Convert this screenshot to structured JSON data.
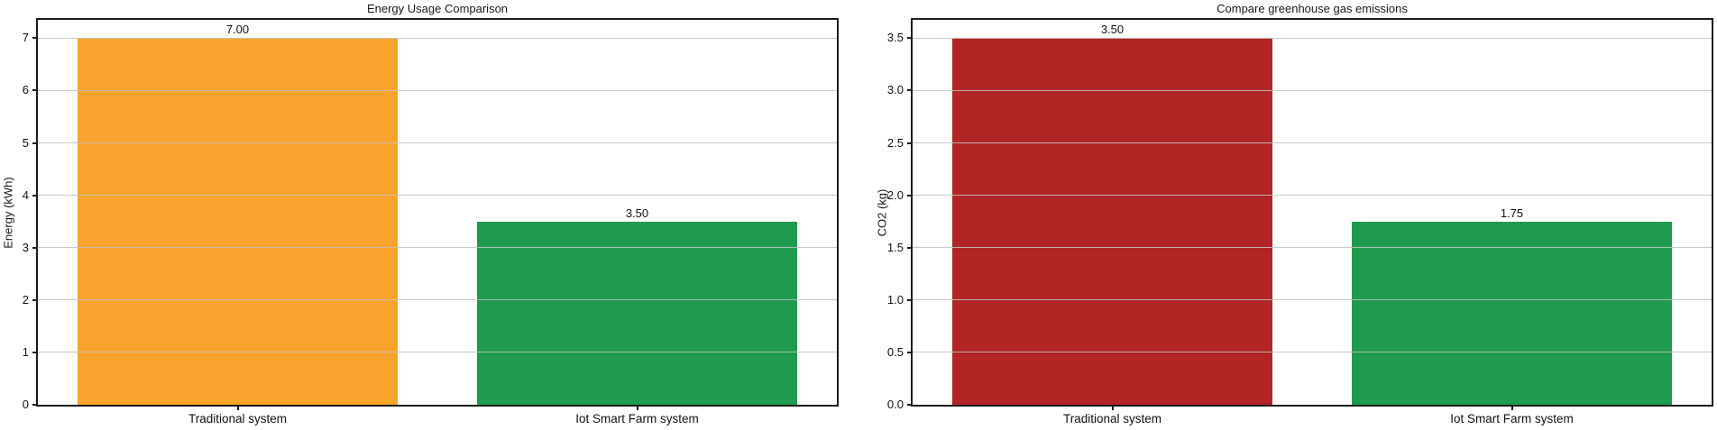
{
  "figure": {
    "background": "#ffffff",
    "axis_color": "#1c1c1c",
    "grid_color": "#c0c0c0",
    "text_color": "#111111"
  },
  "chart_data": [
    {
      "type": "bar",
      "title": "Energy Usage Comparison",
      "xlabel": "",
      "ylabel": "Energy (kWh)",
      "categories": [
        "Traditional system",
        "Iot Smart Farm system"
      ],
      "values": [
        7.0,
        3.5
      ],
      "value_labels": [
        "7.00",
        "3.50"
      ],
      "bar_colors": [
        "#F8A32B",
        "#1E9B4D"
      ],
      "yticks": [
        0,
        1,
        2,
        3,
        4,
        5,
        6,
        7
      ],
      "ytick_labels": [
        "0",
        "1",
        "2",
        "3",
        "4",
        "5",
        "6",
        "7"
      ],
      "ylim": [
        0,
        7.35
      ],
      "grid": true,
      "grid_axis": "y",
      "legend": false
    },
    {
      "type": "bar",
      "title": "Compare greenhouse gas emissions",
      "xlabel": "",
      "ylabel": "CO2 (kg)",
      "categories": [
        "Traditional system",
        "Iot Smart Farm system"
      ],
      "values": [
        3.5,
        1.75
      ],
      "value_labels": [
        "3.50",
        "1.75"
      ],
      "bar_colors": [
        "#B22524",
        "#1E9B4D"
      ],
      "yticks": [
        0,
        0.5,
        1,
        1.5,
        2,
        2.5,
        3,
        3.5
      ],
      "ytick_labels": [
        "0.0",
        "0.5",
        "1.0",
        "1.5",
        "2.0",
        "2.5",
        "3.0",
        "3.5"
      ],
      "ylim": [
        0,
        3.675
      ],
      "grid": true,
      "grid_axis": "y",
      "legend": false
    }
  ]
}
